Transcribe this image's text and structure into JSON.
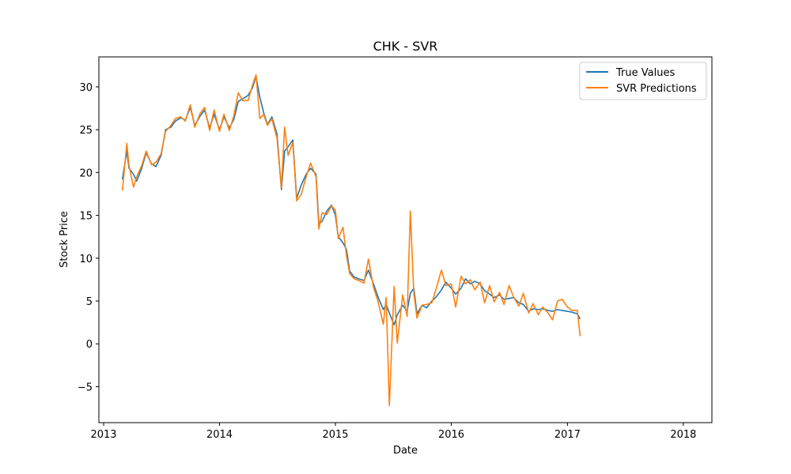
{
  "chart_data": {
    "type": "line",
    "title": "CHK - SVR",
    "xlabel": "Date",
    "ylabel": "Stock Price",
    "xlim": [
      "2012-12-17",
      "2018-04-01"
    ],
    "ylim": [
      -9.2,
      33.5
    ],
    "x_ticks": [
      {
        "label": "2013",
        "value": "2013-01-01"
      },
      {
        "label": "2014",
        "value": "2014-01-01"
      },
      {
        "label": "2015",
        "value": "2015-01-01"
      },
      {
        "label": "2016",
        "value": "2016-01-01"
      },
      {
        "label": "2017",
        "value": "2017-01-01"
      },
      {
        "label": "2018",
        "value": "2018-01-01"
      }
    ],
    "y_ticks": [
      {
        "label": "−5",
        "value": -5
      },
      {
        "label": "0",
        "value": 0
      },
      {
        "label": "5",
        "value": 5
      },
      {
        "label": "10",
        "value": 10
      },
      {
        "label": "15",
        "value": 15
      },
      {
        "label": "20",
        "value": 20
      },
      {
        "label": "25",
        "value": 25
      },
      {
        "label": "30",
        "value": 30
      }
    ],
    "legend_position": "top-right",
    "grid": false,
    "series": [
      {
        "name": "True Values",
        "color": "#1f77b4",
        "points": [
          [
            "2013-03-01",
            19.2
          ],
          [
            "2013-03-15",
            22.5
          ],
          [
            "2013-03-22",
            20.5
          ],
          [
            "2013-04-05",
            19.8
          ],
          [
            "2013-04-15",
            19.0
          ],
          [
            "2013-05-01",
            20.5
          ],
          [
            "2013-05-15",
            22.3
          ],
          [
            "2013-06-01",
            21.0
          ],
          [
            "2013-06-15",
            20.7
          ],
          [
            "2013-07-01",
            22.0
          ],
          [
            "2013-07-15",
            25.0
          ],
          [
            "2013-08-01",
            25.3
          ],
          [
            "2013-08-15",
            26.0
          ],
          [
            "2013-09-01",
            26.4
          ],
          [
            "2013-09-15",
            26.1
          ],
          [
            "2013-10-01",
            27.6
          ],
          [
            "2013-10-15",
            25.5
          ],
          [
            "2013-11-01",
            26.6
          ],
          [
            "2013-11-15",
            27.3
          ],
          [
            "2013-12-01",
            25.2
          ],
          [
            "2013-12-15",
            26.8
          ],
          [
            "2014-01-01",
            25.0
          ],
          [
            "2014-01-15",
            26.5
          ],
          [
            "2014-02-01",
            25.2
          ],
          [
            "2014-02-15",
            26.2
          ],
          [
            "2014-03-01",
            28.3
          ],
          [
            "2014-03-15",
            28.6
          ],
          [
            "2014-04-01",
            29.0
          ],
          [
            "2014-04-15",
            29.9
          ],
          [
            "2014-04-26",
            31.2
          ],
          [
            "2014-05-08",
            28.8
          ],
          [
            "2014-05-20",
            27.0
          ],
          [
            "2014-06-01",
            25.6
          ],
          [
            "2014-06-15",
            26.5
          ],
          [
            "2014-07-01",
            24.5
          ],
          [
            "2014-07-15",
            18.0
          ],
          [
            "2014-07-25",
            22.5
          ],
          [
            "2014-08-05",
            23.0
          ],
          [
            "2014-08-20",
            23.8
          ],
          [
            "2014-09-01",
            17.0
          ],
          [
            "2014-09-15",
            18.5
          ],
          [
            "2014-10-01",
            19.8
          ],
          [
            "2014-10-15",
            20.5
          ],
          [
            "2014-11-01",
            19.8
          ],
          [
            "2014-11-10",
            14.0
          ],
          [
            "2014-11-20",
            14.3
          ],
          [
            "2014-12-05",
            15.5
          ],
          [
            "2014-12-20",
            16.2
          ],
          [
            "2015-01-01",
            15.0
          ],
          [
            "2015-01-10",
            12.5
          ],
          [
            "2015-01-25",
            11.8
          ],
          [
            "2015-02-05",
            11.0
          ],
          [
            "2015-02-15",
            8.5
          ],
          [
            "2015-03-01",
            7.8
          ],
          [
            "2015-03-15",
            7.6
          ],
          [
            "2015-04-01",
            7.4
          ],
          [
            "2015-04-15",
            8.6
          ],
          [
            "2015-05-01",
            7.0
          ],
          [
            "2015-05-15",
            5.5
          ],
          [
            "2015-06-01",
            4.0
          ],
          [
            "2015-06-10",
            4.6
          ],
          [
            "2015-06-20",
            3.6
          ],
          [
            "2015-07-05",
            2.2
          ],
          [
            "2015-07-15",
            3.4
          ],
          [
            "2015-08-01",
            4.5
          ],
          [
            "2015-08-15",
            3.8
          ],
          [
            "2015-08-25",
            5.9
          ],
          [
            "2015-09-05",
            6.5
          ],
          [
            "2015-09-15",
            3.5
          ],
          [
            "2015-10-01",
            4.5
          ],
          [
            "2015-10-15",
            4.2
          ],
          [
            "2015-11-01",
            5.0
          ],
          [
            "2015-11-15",
            5.5
          ],
          [
            "2015-12-01",
            6.3
          ],
          [
            "2015-12-15",
            7.2
          ],
          [
            "2016-01-01",
            6.5
          ],
          [
            "2016-01-15",
            5.8
          ],
          [
            "2016-02-01",
            6.5
          ],
          [
            "2016-02-15",
            7.6
          ],
          [
            "2016-03-01",
            7.0
          ],
          [
            "2016-03-15",
            7.3
          ],
          [
            "2016-04-01",
            7.0
          ],
          [
            "2016-04-15",
            6.2
          ],
          [
            "2016-05-01",
            5.8
          ],
          [
            "2016-05-15",
            5.4
          ],
          [
            "2016-06-01",
            5.7
          ],
          [
            "2016-06-15",
            5.2
          ],
          [
            "2016-07-01",
            5.3
          ],
          [
            "2016-07-15",
            5.4
          ],
          [
            "2016-08-01",
            4.8
          ],
          [
            "2016-08-15",
            4.6
          ],
          [
            "2016-09-01",
            3.8
          ],
          [
            "2016-09-15",
            4.1
          ],
          [
            "2016-10-01",
            4.0
          ],
          [
            "2016-10-15",
            4.1
          ],
          [
            "2016-11-01",
            3.9
          ],
          [
            "2016-11-15",
            3.8
          ],
          [
            "2016-12-01",
            4.0
          ],
          [
            "2016-12-15",
            3.9
          ],
          [
            "2017-01-01",
            3.8
          ],
          [
            "2017-01-15",
            3.7
          ],
          [
            "2017-02-01",
            3.5
          ],
          [
            "2017-02-10",
            2.9
          ]
        ]
      },
      {
        "name": "SVR Predictions",
        "color": "#ff7f0e",
        "points": [
          [
            "2013-03-01",
            17.9
          ],
          [
            "2013-03-15",
            23.4
          ],
          [
            "2013-03-22",
            20.8
          ],
          [
            "2013-04-05",
            18.3
          ],
          [
            "2013-04-15",
            19.5
          ],
          [
            "2013-05-01",
            20.8
          ],
          [
            "2013-05-15",
            22.5
          ],
          [
            "2013-06-01",
            20.9
          ],
          [
            "2013-06-15",
            21.2
          ],
          [
            "2013-07-01",
            22.2
          ],
          [
            "2013-07-15",
            24.8
          ],
          [
            "2013-08-01",
            25.5
          ],
          [
            "2013-08-15",
            26.3
          ],
          [
            "2013-09-01",
            26.5
          ],
          [
            "2013-09-15",
            26.0
          ],
          [
            "2013-10-01",
            27.9
          ],
          [
            "2013-10-15",
            25.3
          ],
          [
            "2013-11-01",
            26.9
          ],
          [
            "2013-11-15",
            27.6
          ],
          [
            "2013-12-01",
            24.9
          ],
          [
            "2013-12-15",
            27.3
          ],
          [
            "2014-01-01",
            24.8
          ],
          [
            "2014-01-15",
            26.8
          ],
          [
            "2014-02-01",
            24.9
          ],
          [
            "2014-02-15",
            26.6
          ],
          [
            "2014-03-01",
            29.3
          ],
          [
            "2014-03-15",
            28.4
          ],
          [
            "2014-04-01",
            28.4
          ],
          [
            "2014-04-15",
            30.2
          ],
          [
            "2014-04-26",
            31.4
          ],
          [
            "2014-05-08",
            26.3
          ],
          [
            "2014-05-20",
            26.8
          ],
          [
            "2014-06-01",
            25.5
          ],
          [
            "2014-06-15",
            26.3
          ],
          [
            "2014-07-01",
            24.0
          ],
          [
            "2014-07-15",
            18.2
          ],
          [
            "2014-07-25",
            25.3
          ],
          [
            "2014-08-05",
            22.0
          ],
          [
            "2014-08-20",
            23.5
          ],
          [
            "2014-09-01",
            16.7
          ],
          [
            "2014-09-15",
            17.4
          ],
          [
            "2014-10-01",
            19.5
          ],
          [
            "2014-10-15",
            21.1
          ],
          [
            "2014-11-01",
            19.5
          ],
          [
            "2014-11-10",
            13.4
          ],
          [
            "2014-11-20",
            15.3
          ],
          [
            "2014-12-05",
            15.1
          ],
          [
            "2014-12-20",
            16.1
          ],
          [
            "2015-01-01",
            15.6
          ],
          [
            "2015-01-10",
            12.3
          ],
          [
            "2015-01-25",
            13.6
          ],
          [
            "2015-02-05",
            10.3
          ],
          [
            "2015-02-15",
            8.2
          ],
          [
            "2015-03-01",
            7.6
          ],
          [
            "2015-03-15",
            7.4
          ],
          [
            "2015-04-01",
            7.1
          ],
          [
            "2015-04-15",
            9.9
          ],
          [
            "2015-05-01",
            6.6
          ],
          [
            "2015-05-15",
            5.0
          ],
          [
            "2015-06-01",
            2.3
          ],
          [
            "2015-06-10",
            5.4
          ],
          [
            "2015-06-20",
            -7.2
          ],
          [
            "2015-07-05",
            6.7
          ],
          [
            "2015-07-15",
            0.1
          ],
          [
            "2015-08-01",
            5.7
          ],
          [
            "2015-08-15",
            3.2
          ],
          [
            "2015-08-25",
            15.5
          ],
          [
            "2015-09-05",
            6.0
          ],
          [
            "2015-09-15",
            3.0
          ],
          [
            "2015-10-01",
            4.5
          ],
          [
            "2015-10-15",
            4.6
          ],
          [
            "2015-11-01",
            4.8
          ],
          [
            "2015-11-15",
            6.5
          ],
          [
            "2015-12-01",
            8.6
          ],
          [
            "2015-12-15",
            6.8
          ],
          [
            "2016-01-01",
            7.0
          ],
          [
            "2016-01-15",
            4.3
          ],
          [
            "2016-02-01",
            7.9
          ],
          [
            "2016-02-15",
            7.0
          ],
          [
            "2016-03-01",
            7.5
          ],
          [
            "2016-03-15",
            6.3
          ],
          [
            "2016-04-01",
            7.2
          ],
          [
            "2016-04-15",
            4.8
          ],
          [
            "2016-05-01",
            6.8
          ],
          [
            "2016-05-15",
            4.9
          ],
          [
            "2016-06-01",
            6.0
          ],
          [
            "2016-06-15",
            4.6
          ],
          [
            "2016-07-01",
            6.8
          ],
          [
            "2016-07-15",
            5.5
          ],
          [
            "2016-08-01",
            4.4
          ],
          [
            "2016-08-15",
            5.9
          ],
          [
            "2016-09-01",
            3.6
          ],
          [
            "2016-09-15",
            4.7
          ],
          [
            "2016-10-01",
            3.4
          ],
          [
            "2016-10-15",
            4.3
          ],
          [
            "2016-11-01",
            3.6
          ],
          [
            "2016-11-15",
            2.8
          ],
          [
            "2016-12-01",
            5.0
          ],
          [
            "2016-12-15",
            5.2
          ],
          [
            "2017-01-01",
            4.3
          ],
          [
            "2017-01-15",
            3.9
          ],
          [
            "2017-02-01",
            3.9
          ],
          [
            "2017-02-10",
            0.9
          ]
        ]
      }
    ]
  }
}
